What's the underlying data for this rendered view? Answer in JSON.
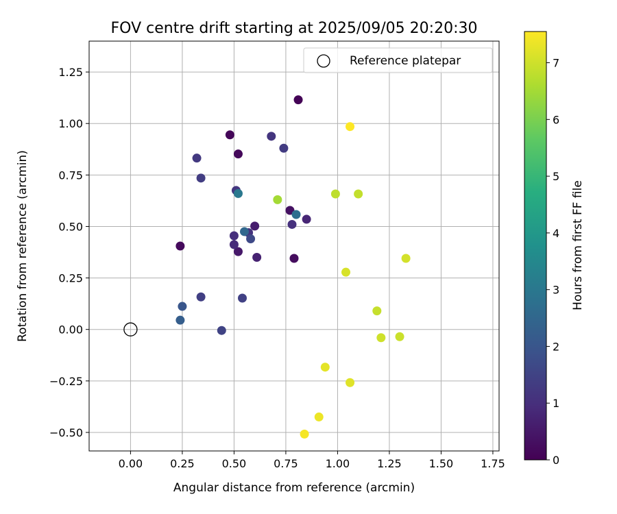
{
  "chart_data": {
    "type": "scatter",
    "title": "FOV centre drift starting at 2025/09/05 20:20:30",
    "xlabel": "Angular distance from reference (arcmin)",
    "ylabel": "Rotation from reference (arcmin)",
    "xlim": [
      -0.2,
      1.78
    ],
    "ylim": [
      -0.59,
      1.4
    ],
    "x_ticks": [
      0.0,
      0.25,
      0.5,
      0.75,
      1.0,
      1.25,
      1.5,
      1.75
    ],
    "x_tick_labels": [
      "0.00",
      "0.25",
      "0.50",
      "0.75",
      "1.00",
      "1.25",
      "1.50",
      "1.75"
    ],
    "y_ticks": [
      -0.5,
      -0.25,
      0.0,
      0.25,
      0.5,
      0.75,
      1.0,
      1.25
    ],
    "y_tick_labels": [
      "−0.50",
      "−0.25",
      "0.00",
      "0.25",
      "0.50",
      "0.75",
      "1.00",
      "1.25"
    ],
    "grid": true,
    "legend": {
      "position": "upper-right",
      "entries": [
        "Reference platepar"
      ]
    },
    "reference_point": {
      "name": "Reference platepar",
      "x": 0.0,
      "y": 0.0
    },
    "colorbar": {
      "label": "Hours from first FF file",
      "min": 0,
      "max": 7.55,
      "ticks": [
        0,
        1,
        2,
        3,
        4,
        5,
        6,
        7
      ],
      "tick_labels": [
        "0",
        "1",
        "2",
        "3",
        "4",
        "5",
        "6",
        "7"
      ],
      "colormap": "viridis"
    },
    "points": [
      {
        "x": 0.81,
        "y": 1.115,
        "hours": 0.05
      },
      {
        "x": 0.48,
        "y": 0.945,
        "hours": 0.1
      },
      {
        "x": 0.52,
        "y": 0.852,
        "hours": 0.15
      },
      {
        "x": 0.24,
        "y": 0.405,
        "hours": 0.2
      },
      {
        "x": 0.79,
        "y": 0.345,
        "hours": 0.25
      },
      {
        "x": 0.77,
        "y": 0.578,
        "hours": 0.35
      },
      {
        "x": 0.52,
        "y": 0.378,
        "hours": 0.5
      },
      {
        "x": 0.6,
        "y": 0.502,
        "hours": 0.6
      },
      {
        "x": 0.61,
        "y": 0.35,
        "hours": 0.7
      },
      {
        "x": 0.85,
        "y": 0.535,
        "hours": 0.8
      },
      {
        "x": 0.5,
        "y": 0.412,
        "hours": 0.9
      },
      {
        "x": 0.5,
        "y": 0.455,
        "hours": 1.0
      },
      {
        "x": 0.78,
        "y": 0.51,
        "hours": 1.05
      },
      {
        "x": 0.57,
        "y": 0.47,
        "hours": 1.1
      },
      {
        "x": 0.68,
        "y": 0.938,
        "hours": 1.15
      },
      {
        "x": 0.51,
        "y": 0.675,
        "hours": 1.2
      },
      {
        "x": 0.32,
        "y": 0.832,
        "hours": 1.25
      },
      {
        "x": 0.74,
        "y": 0.88,
        "hours": 1.3
      },
      {
        "x": 0.34,
        "y": 0.735,
        "hours": 1.35
      },
      {
        "x": 0.34,
        "y": 0.158,
        "hours": 1.4
      },
      {
        "x": 0.54,
        "y": 0.152,
        "hours": 1.45
      },
      {
        "x": 0.44,
        "y": -0.005,
        "hours": 1.5
      },
      {
        "x": 0.58,
        "y": 0.44,
        "hours": 1.65
      },
      {
        "x": 0.25,
        "y": 0.112,
        "hours": 2.0
      },
      {
        "x": 0.24,
        "y": 0.045,
        "hours": 2.25
      },
      {
        "x": 0.55,
        "y": 0.475,
        "hours": 2.5
      },
      {
        "x": 0.8,
        "y": 0.558,
        "hours": 2.7
      },
      {
        "x": 0.52,
        "y": 0.66,
        "hours": 3.0
      },
      {
        "x": 0.71,
        "y": 0.63,
        "hours": 6.5
      },
      {
        "x": 0.99,
        "y": 0.658,
        "hours": 6.8
      },
      {
        "x": 1.1,
        "y": 0.658,
        "hours": 6.85
      },
      {
        "x": 1.19,
        "y": 0.09,
        "hours": 6.9
      },
      {
        "x": 1.3,
        "y": -0.035,
        "hours": 6.95
      },
      {
        "x": 1.21,
        "y": -0.04,
        "hours": 7.0
      },
      {
        "x": 1.33,
        "y": 0.345,
        "hours": 7.05
      },
      {
        "x": 1.04,
        "y": 0.278,
        "hours": 7.1
      },
      {
        "x": 1.06,
        "y": -0.258,
        "hours": 7.2
      },
      {
        "x": 0.94,
        "y": -0.183,
        "hours": 7.25
      },
      {
        "x": 0.91,
        "y": -0.425,
        "hours": 7.35
      },
      {
        "x": 0.84,
        "y": -0.508,
        "hours": 7.45
      },
      {
        "x": 1.06,
        "y": 0.985,
        "hours": 7.55
      }
    ]
  }
}
